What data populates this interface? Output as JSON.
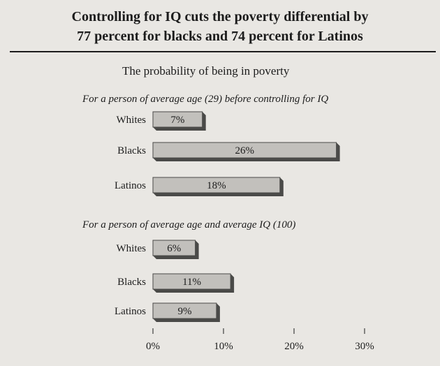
{
  "title_line1": "Controlling for IQ cuts the poverty differential by",
  "title_line2": "77 percent for blacks and 74 percent for Latinos",
  "subtitle": "The probability of being in poverty",
  "colors": {
    "bar": "#c2c0bc",
    "bar_shadow": "#4a4a48",
    "text": "#1c1c1c"
  },
  "chart_data": [
    {
      "type": "bar",
      "orientation": "horizontal",
      "title": "For a person of average age (29) before controlling for IQ",
      "categories": [
        "Whites",
        "Blacks",
        "Latinos"
      ],
      "values": [
        7,
        26,
        18
      ],
      "value_labels": [
        "7%",
        "26%",
        "18%"
      ],
      "unit": "%"
    },
    {
      "type": "bar",
      "orientation": "horizontal",
      "title": "For a person of average age and average IQ (100)",
      "categories": [
        "Whites",
        "Blacks",
        "Latinos"
      ],
      "values": [
        6,
        11,
        9
      ],
      "value_labels": [
        "6%",
        "11%",
        "9%"
      ],
      "unit": "%"
    }
  ],
  "x_axis": {
    "ticks": [
      0,
      10,
      20,
      30
    ],
    "tick_labels": [
      "0%",
      "10%",
      "20%",
      "30%"
    ],
    "xlim": [
      0,
      30
    ]
  }
}
